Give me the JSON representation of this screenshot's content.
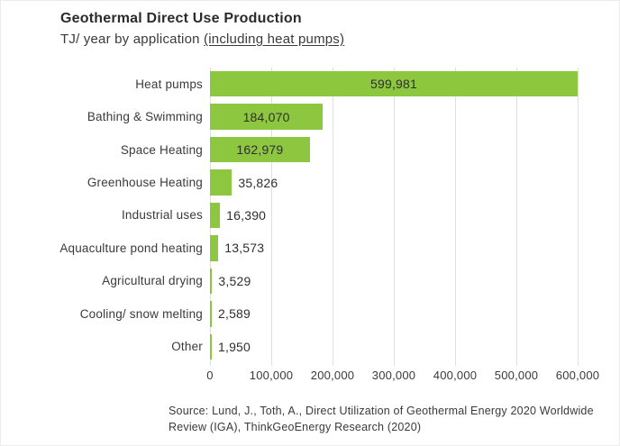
{
  "colors": {
    "bar": "#8dc63f",
    "grid": "#e0e0e2",
    "title": "#2b2b2b",
    "text": "#3a3a3a",
    "background": "#ffffff"
  },
  "header": {
    "title": "Geothermal Direct Use Production",
    "subtitle_prefix": "TJ/ year by application ",
    "subtitle_underline": "(including heat pumps)"
  },
  "chart_data": {
    "type": "bar",
    "orientation": "horizontal",
    "title": "Geothermal Direct Use Production",
    "subtitle": "TJ/ year by application (including heat pumps)",
    "unit": "TJ/year",
    "categories": [
      "Heat pumps",
      "Bathing & Swimming",
      "Space Heating",
      "Greenhouse Heating",
      "Industrial uses",
      "Aquaculture pond heating",
      "Agricultural drying",
      "Cooling/ snow melting",
      "Other"
    ],
    "values": [
      599981,
      184070,
      162979,
      35826,
      16390,
      13573,
      3529,
      2589,
      1950
    ],
    "value_labels": [
      "599,981",
      "184,070",
      "162,979",
      "35,826",
      "16,390",
      "13,573",
      "3,529",
      "2,589",
      "1,950"
    ],
    "xlim": [
      0,
      600000
    ],
    "x_ticks": [
      0,
      100000,
      200000,
      300000,
      400000,
      500000,
      600000
    ],
    "x_tick_labels": [
      "0",
      "100,000",
      "200,000",
      "300,000",
      "400,000",
      "500,000",
      "600,000"
    ],
    "grid": true,
    "legend": false
  },
  "source": {
    "lines": [
      "Source: Lund, J., Toth, A., Direct Utilization of Geothermal Energy 2020 Worldwide",
      "Review (IGA), ThinkGeoEnergy Research (2020)"
    ]
  }
}
